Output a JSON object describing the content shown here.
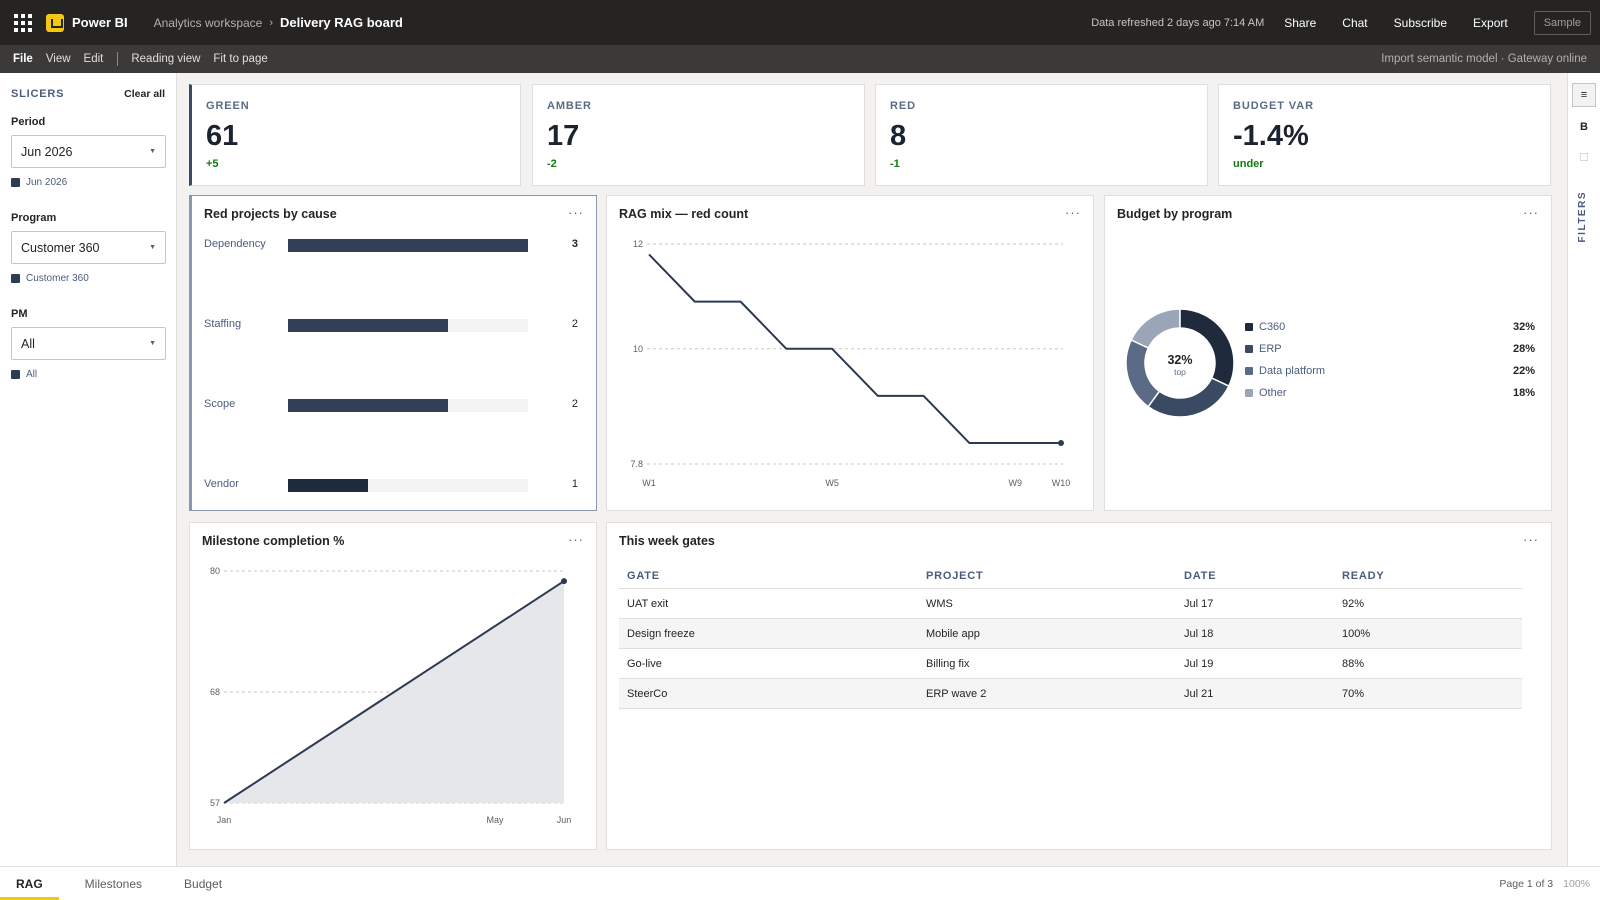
{
  "topbar": {
    "app_name": "Power BI",
    "workspace": "Analytics workspace",
    "separator": "›",
    "report": "Delivery RAG board",
    "refresh": "Data refreshed 2 days ago 7:14 AM",
    "share": "Share",
    "chat": "Chat",
    "subscribe": "Subscribe",
    "export": "Export",
    "sample": "Sample"
  },
  "menubar": {
    "file": "File",
    "view": "View",
    "edit": "Edit",
    "reading_view": "Reading view",
    "fit_to_page": "Fit to page",
    "status": "Import semantic model · Gateway online"
  },
  "slicers": {
    "title": "SLICERS",
    "clear_all": "Clear all",
    "period": {
      "label": "Period",
      "value": "Jun 2026",
      "chip": "Jun 2026"
    },
    "program": {
      "label": "Program",
      "value": "Customer 360",
      "chip": "Customer 360"
    },
    "pm": {
      "label": "PM",
      "value": "All",
      "chip": "All"
    }
  },
  "kpis": [
    {
      "label": "GREEN",
      "value": "61",
      "delta": "+5"
    },
    {
      "label": "AMBER",
      "value": "17",
      "delta": "-2"
    },
    {
      "label": "RED",
      "value": "8",
      "delta": "-1"
    },
    {
      "label": "BUDGET VAR",
      "value": "-1.4%",
      "delta": "under"
    }
  ],
  "visuals": {
    "red_by_cause": {
      "title": "Red projects by cause",
      "more": "···"
    },
    "rag_mix": {
      "title": "RAG mix — red count",
      "more": "···"
    },
    "budget_program": {
      "title": "Budget by program",
      "more": "···",
      "center_value": "32%",
      "center_sub": "top"
    },
    "milestone": {
      "title": "Milestone completion %",
      "more": "···"
    },
    "gates": {
      "title": "This week gates",
      "more": "···"
    }
  },
  "chart_data": [
    {
      "type": "bar",
      "orientation": "horizontal",
      "title": "Red projects by cause",
      "categories": [
        "Dependency",
        "Staffing",
        "Scope",
        "Vendor"
      ],
      "values": [
        3,
        2,
        2,
        1
      ],
      "xlim": [
        0,
        3
      ]
    },
    {
      "type": "line",
      "title": "RAG mix — red count",
      "x": [
        "W1",
        "W2",
        "W3",
        "W4",
        "W5",
        "W6",
        "W7",
        "W8",
        "W9",
        "W10"
      ],
      "values": [
        11.8,
        10.9,
        10.9,
        10.0,
        10.0,
        9.1,
        9.1,
        8.2,
        8.2,
        8.2
      ],
      "x_tick_labels": [
        "W1",
        "W5",
        "W9",
        "W10"
      ],
      "y_ticks": [
        "12",
        "10",
        "7.8"
      ],
      "ylim": [
        7.8,
        12
      ],
      "grid": true
    },
    {
      "type": "pie",
      "title": "Budget by program",
      "donut": true,
      "categories": [
        "C360",
        "ERP",
        "Data platform",
        "Other"
      ],
      "values": [
        32,
        28,
        22,
        18
      ],
      "value_labels": [
        "32%",
        "28%",
        "22%",
        "18%"
      ],
      "colors": [
        "#1f2a3c",
        "#3b4a63",
        "#5b6b86",
        "#9aa5b8"
      ],
      "legend": "right"
    },
    {
      "type": "area",
      "title": "Milestone completion %",
      "x": [
        "Jan",
        "Jun"
      ],
      "values": [
        57,
        79
      ],
      "x_tick_labels": [
        "Jan",
        "May",
        "Jun"
      ],
      "y_ticks": [
        "80",
        "68",
        "57"
      ],
      "ylim": [
        57,
        80
      ],
      "grid": true
    }
  ],
  "gates_table": {
    "columns": [
      "GATE",
      "PROJECT",
      "DATE",
      "READY"
    ],
    "rows": [
      [
        "UAT exit",
        "WMS",
        "Jul 17",
        "92%"
      ],
      [
        "Design freeze",
        "Mobile app",
        "Jul 18",
        "100%"
      ],
      [
        "Go-live",
        "Billing fix",
        "Jul 19",
        "88%"
      ],
      [
        "SteerCo",
        "ERP wave 2",
        "Jul 21",
        "70%"
      ]
    ]
  },
  "filters_pane": {
    "label": "FILTERS",
    "btn1": "≡",
    "btn2": "B",
    "btn3": "☐"
  },
  "bottom": {
    "tabs": [
      "RAG",
      "Milestones",
      "Budget"
    ],
    "page_info": "Page 1 of 3",
    "zoom": "100%"
  },
  "colors": {
    "accent": "#f2c811",
    "bar": "#323f54",
    "good": "#107c10"
  }
}
